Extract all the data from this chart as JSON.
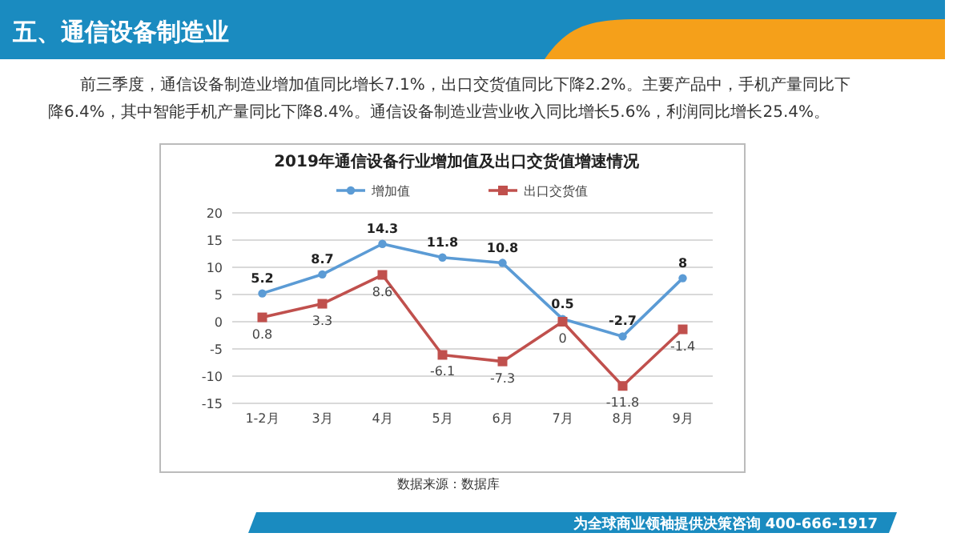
{
  "chart_data": {
    "type": "line",
    "title": "2019年通信设备行业增加值及出口交货值增速情况",
    "subtitle": "前三季度，通信设备制造业增加值同比增长7.1%，出口交货值同比下降2.2%。主要产品中，手机产量同比下降6.4%，其中智能手机产量同比下降8.4%。通信设备制造业营业收入同比增长5.6%，利润同比增长25.4%。",
    "annotations": [
      "五、通信设备制造业",
      "数据来源：数据库",
      "为全球商业领袖提供决策咨询   400-666-1917"
    ],
    "categories": [
      "1-2月",
      "3月",
      "4月",
      "5月",
      "6月",
      "7月",
      "8月",
      "9月"
    ],
    "series": [
      {
        "name": "增加值",
        "color": "#5b9bd5",
        "values": [
          5.2,
          8.7,
          14.3,
          11.8,
          10.8,
          0.5,
          -2.7,
          8
        ],
        "marker": "circle"
      },
      {
        "name": "出口交货值",
        "color": "#c0504d",
        "values": [
          0.8,
          3.3,
          8.6,
          -6.1,
          -7.3,
          0,
          -11.8,
          -1.4
        ],
        "marker": "square"
      }
    ],
    "ylim": [
      -15,
      20
    ],
    "yticks": [
      -15,
      -10,
      -5,
      0,
      5,
      10,
      15,
      20
    ],
    "grid": "y",
    "legend": "top",
    "data_labels": true
  }
}
